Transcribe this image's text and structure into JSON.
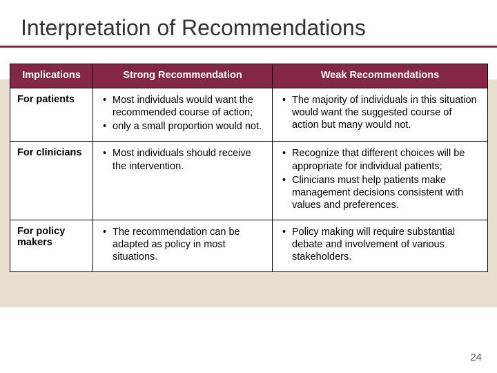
{
  "title": "Interpretation of Recommendations",
  "page_number": "24",
  "colors": {
    "accent": "#842747",
    "band_bg": "#e7e0cf",
    "cell_bg": "#ffffff",
    "border": "#000000",
    "text": "#000000",
    "header_text": "#ffffff"
  },
  "table": {
    "columns": [
      "Implications",
      "Strong Recommendation",
      "Weak Recommendations"
    ],
    "rows": [
      {
        "head": "For patients",
        "strong": [
          "Most individuals would want the recommended course of action;",
          "only a small proportion would not."
        ],
        "weak": [
          "The majority of individuals in this situation would want the suggested course of action but many would not."
        ]
      },
      {
        "head": "For clinicians",
        "strong": [
          "Most individuals should receive the intervention."
        ],
        "weak": [
          "Recognize that different choices will be appropriate for individual patients;",
          "Clinicians must help patients make management decisions consistent with values and preferences."
        ]
      },
      {
        "head": "For policy makers",
        "strong": [
          "The recommendation can be adapted as policy in most situations."
        ],
        "weak": [
          "Policy making will require substantial debate and involvement of various stakeholders."
        ]
      }
    ]
  }
}
